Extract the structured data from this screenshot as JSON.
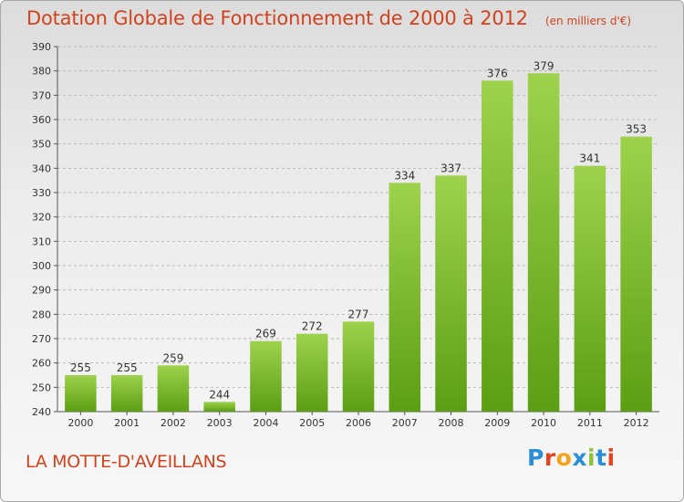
{
  "title": "Dotation Globale de Fonctionnement de 2000 à 2012",
  "subtitle": "(en milliers d'€)",
  "commune": "LA MOTTE-D'AVEILLANS",
  "logo": {
    "text": "Proxiti",
    "letter_colors": [
      "#2a8fd6",
      "#e2451f",
      "#f2a31b",
      "#2a8fd6",
      "#8cc33a",
      "#2a8fd6",
      "#e2451f"
    ]
  },
  "colors": {
    "title": "#d2421c",
    "bar_top": "#9ed24c",
    "bar_bottom": "#5b9e14",
    "grid": "#b8b8b8"
  },
  "chart_data": {
    "type": "bar",
    "title": "Dotation Globale de Fonctionnement de 2000 à 2012",
    "subtitle": "(en milliers d'€)",
    "xlabel": "",
    "ylabel": "",
    "categories": [
      "2000",
      "2001",
      "2002",
      "2003",
      "2004",
      "2005",
      "2006",
      "2007",
      "2008",
      "2009",
      "2010",
      "2011",
      "2012"
    ],
    "values": [
      255,
      255,
      259,
      244,
      269,
      272,
      277,
      334,
      337,
      376,
      379,
      341,
      353
    ],
    "ylim": [
      240,
      390
    ],
    "yticks": [
      240,
      250,
      260,
      270,
      280,
      290,
      300,
      310,
      320,
      330,
      340,
      350,
      360,
      370,
      380,
      390
    ],
    "grid": true,
    "data_labels": true
  }
}
